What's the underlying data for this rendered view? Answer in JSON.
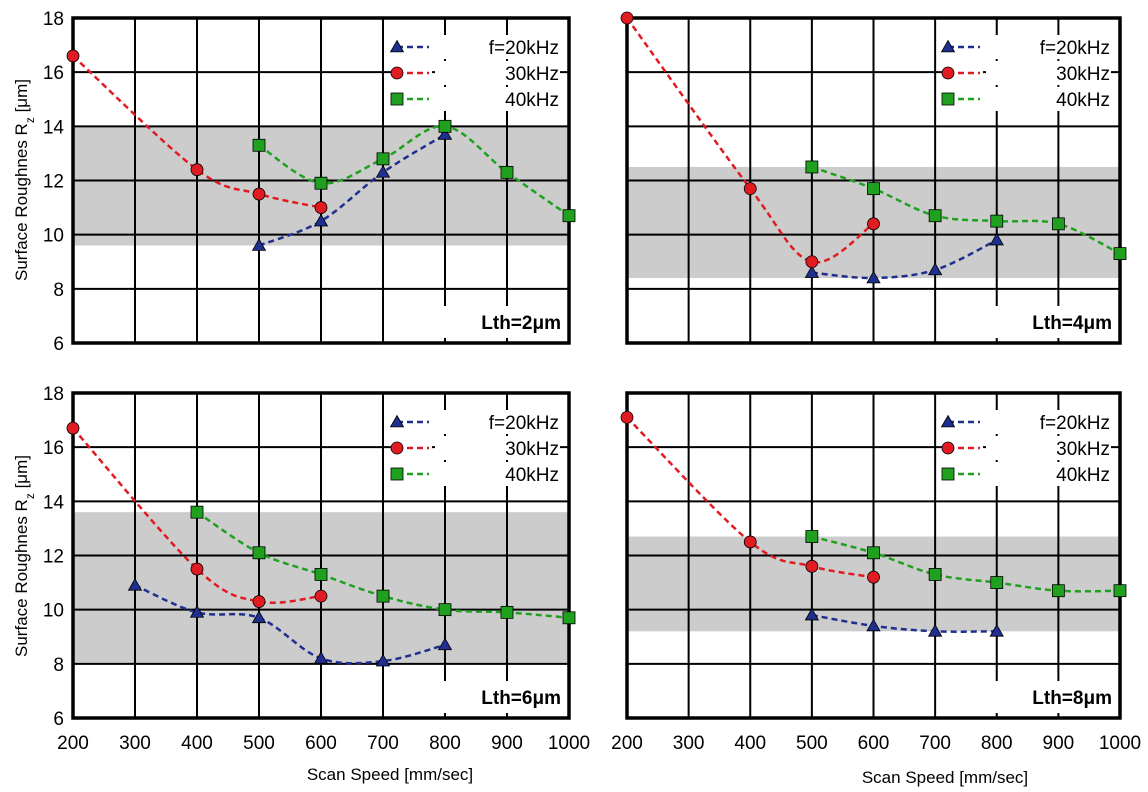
{
  "chart_data": [
    {
      "type": "line",
      "panel_label": "Lth=2μm",
      "xlim": [
        200,
        1000
      ],
      "ylim": [
        6,
        18
      ],
      "band": [
        9.6,
        14.0
      ],
      "series": [
        {
          "name": "f=20kHz",
          "marker": "triangle",
          "color": "#1f2f8f",
          "x": [
            500,
            600,
            700,
            800
          ],
          "y": [
            9.6,
            10.5,
            12.3,
            13.7
          ]
        },
        {
          "name": "30kHz",
          "marker": "circle",
          "color": "#e11b22",
          "x": [
            200,
            400,
            500,
            600
          ],
          "y": [
            16.6,
            12.4,
            11.5,
            11.0
          ]
        },
        {
          "name": "40kHz",
          "marker": "square",
          "color": "#1fa01f",
          "x": [
            500,
            600,
            700,
            800,
            900,
            1000
          ],
          "y": [
            13.3,
            11.9,
            12.8,
            14.0,
            12.3,
            10.7
          ]
        }
      ]
    },
    {
      "type": "line",
      "panel_label": "Lth=4μm",
      "xlim": [
        200,
        1000
      ],
      "ylim": [
        6,
        18
      ],
      "band": [
        8.4,
        12.5
      ],
      "series": [
        {
          "name": "f=20kHz",
          "marker": "triangle",
          "color": "#1f2f8f",
          "x": [
            500,
            600,
            700,
            800
          ],
          "y": [
            8.6,
            8.4,
            8.7,
            9.8
          ]
        },
        {
          "name": "30kHz",
          "marker": "circle",
          "color": "#e11b22",
          "x": [
            200,
            400,
            500,
            600
          ],
          "y": [
            18.0,
            11.7,
            9.0,
            10.4
          ]
        },
        {
          "name": "40kHz",
          "marker": "square",
          "color": "#1fa01f",
          "x": [
            500,
            600,
            700,
            800,
            900,
            1000
          ],
          "y": [
            12.5,
            11.7,
            10.7,
            10.5,
            10.4,
            9.3
          ]
        }
      ]
    },
    {
      "type": "line",
      "panel_label": "Lth=6μm",
      "xlim": [
        200,
        1000
      ],
      "ylim": [
        6,
        18
      ],
      "band": [
        8.0,
        13.6
      ],
      "series": [
        {
          "name": "f=20kHz",
          "marker": "triangle",
          "color": "#1f2f8f",
          "x": [
            300,
            400,
            500,
            600,
            700,
            800
          ],
          "y": [
            10.9,
            9.9,
            9.7,
            8.2,
            8.1,
            8.7
          ]
        },
        {
          "name": "30kHz",
          "marker": "circle",
          "color": "#e11b22",
          "x": [
            200,
            400,
            500,
            600
          ],
          "y": [
            16.7,
            11.5,
            10.3,
            10.5
          ]
        },
        {
          "name": "40kHz",
          "marker": "square",
          "color": "#1fa01f",
          "x": [
            400,
            500,
            600,
            700,
            800,
            900,
            1000
          ],
          "y": [
            13.6,
            12.1,
            11.3,
            10.5,
            10.0,
            9.9,
            9.7
          ]
        }
      ]
    },
    {
      "type": "line",
      "panel_label": "Lth=8μm",
      "xlim": [
        200,
        1000
      ],
      "ylim": [
        6,
        18
      ],
      "band": [
        9.2,
        12.7
      ],
      "series": [
        {
          "name": "f=20kHz",
          "marker": "triangle",
          "color": "#1f2f8f",
          "x": [
            500,
            600,
            700,
            800
          ],
          "y": [
            9.8,
            9.4,
            9.2,
            9.2
          ]
        },
        {
          "name": "30kHz",
          "marker": "circle",
          "color": "#e11b22",
          "x": [
            200,
            400,
            500,
            600
          ],
          "y": [
            17.1,
            12.5,
            11.6,
            11.2
          ]
        },
        {
          "name": "40kHz",
          "marker": "square",
          "color": "#1fa01f",
          "x": [
            500,
            600,
            700,
            800,
            900,
            1000
          ],
          "y": [
            12.7,
            12.1,
            11.3,
            11.0,
            10.7,
            10.7
          ]
        }
      ]
    }
  ],
  "axes": {
    "xlabel": "Scan Speed [mm/sec]",
    "ylabel_main": "Surface Roughnes R",
    "ylabel_sub": "z",
    "ylabel_unit": " [μm]",
    "xticks": [
      "200",
      "300",
      "400",
      "500",
      "600",
      "700",
      "800",
      "900",
      "1000"
    ],
    "yticks": [
      "6",
      "8",
      "10",
      "12",
      "14",
      "16",
      "18"
    ],
    "xtick_values": [
      200,
      300,
      400,
      500,
      600,
      700,
      800,
      900,
      1000
    ],
    "ytick_values": [
      6,
      8,
      10,
      12,
      14,
      16,
      18
    ],
    "grid": true,
    "legend_position": "top-right",
    "band_color": "#cccccc"
  }
}
